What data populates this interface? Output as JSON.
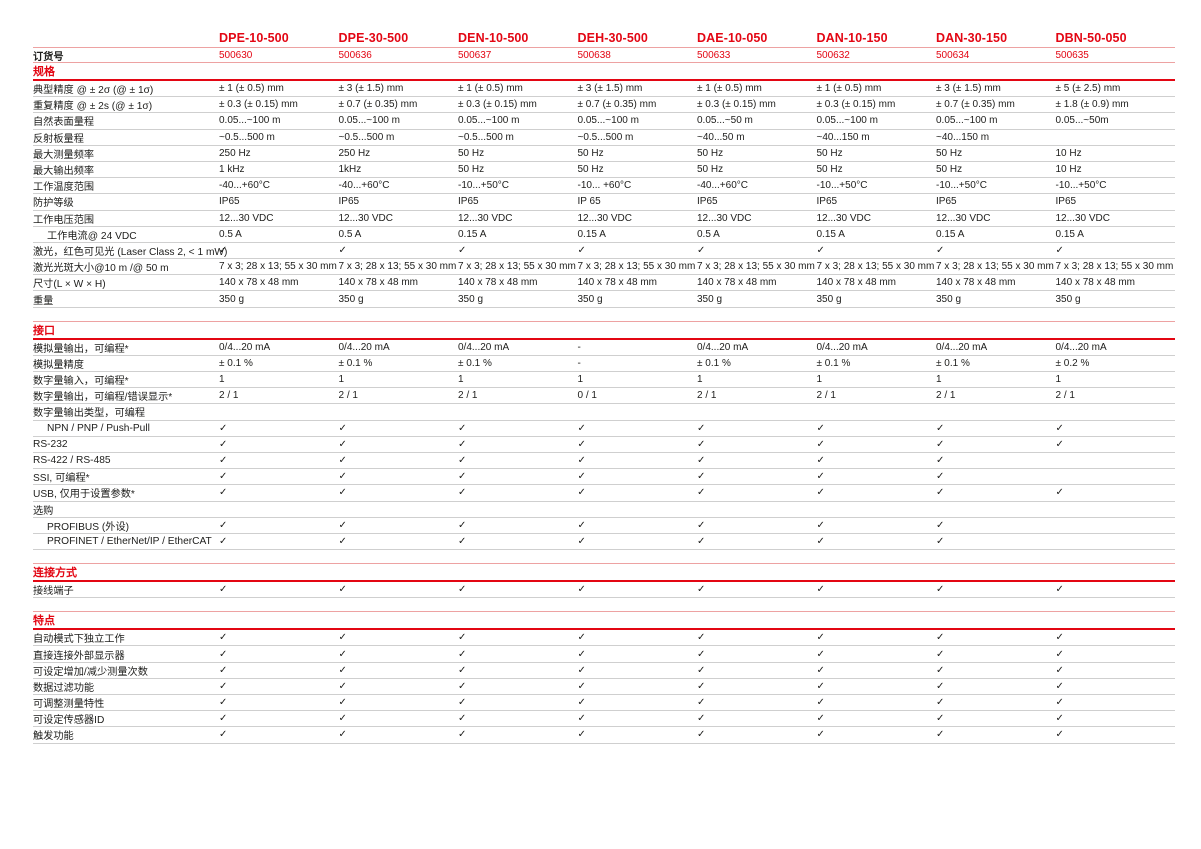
{
  "order_label": "订货号",
  "colors": {
    "accent_red": "#e30613",
    "light_red_line": "#eda2a2",
    "gray_line": "#cfcfcf",
    "text": "#1d1d1b",
    "background": "#ffffff"
  },
  "checkmark_glyph": "✓",
  "columns": [
    {
      "model": "DPE-10-500",
      "order": "500630"
    },
    {
      "model": "DPE-30-500",
      "order": "500636"
    },
    {
      "model": "DEN-10-500",
      "order": "500637"
    },
    {
      "model": "DEH-30-500",
      "order": "500638"
    },
    {
      "model": "DAE-10-050",
      "order": "500633"
    },
    {
      "model": "DAN-10-150",
      "order": "500632"
    },
    {
      "model": "DAN-30-150",
      "order": "500634"
    },
    {
      "model": "DBN-50-050",
      "order": "500635"
    }
  ],
  "sections": [
    {
      "title": "规格",
      "rows": [
        {
          "label": "典型精度 @ ± 2σ (@ ± 1σ)",
          "values": [
            "± 1 (± 0.5) mm",
            "± 3 (± 1.5) mm",
            "± 1 (± 0.5) mm",
            "± 3 (± 1.5) mm",
            "± 1 (± 0.5) mm",
            "± 1 (± 0.5) mm",
            "± 3 (± 1.5) mm",
            "± 5 (± 2.5) mm"
          ]
        },
        {
          "label": "重复精度 @ ± 2s (@ ± 1σ)",
          "values": [
            "± 0.3 (± 0.15) mm",
            "± 0.7 (± 0.35) mm",
            "± 0.3 (± 0.15) mm",
            "± 0.7 (± 0.35) mm",
            "± 0.3 (± 0.15) mm",
            "± 0.3 (± 0.15) mm",
            "± 0.7 (± 0.35) mm",
            "± 1.8 (± 0.9) mm"
          ]
        },
        {
          "label": "自然表面量程",
          "values": [
            "0.05...~100 m",
            "0.05...~100 m",
            "0.05...~100 m",
            "0.05...~100 m",
            "0.05...~50 m",
            "0.05...~100 m",
            "0.05...~100 m",
            "0.05...~50m"
          ]
        },
        {
          "label": "反射板量程",
          "values": [
            "~0.5...500 m",
            "~0.5...500 m",
            "~0.5...500 m",
            "~0.5...500 m",
            "~40...50 m",
            "~40...150 m",
            "~40...150 m",
            ""
          ]
        },
        {
          "label": "最大测量频率",
          "values": [
            "250 Hz",
            "250 Hz",
            "50 Hz",
            "50 Hz",
            "50 Hz",
            "50 Hz",
            "50 Hz",
            "10 Hz"
          ]
        },
        {
          "label": "最大输出频率",
          "values": [
            "1 kHz",
            "1kHz",
            "50 Hz",
            "50 Hz",
            "50 Hz",
            "50 Hz",
            "50 Hz",
            "10 Hz"
          ]
        },
        {
          "label": "工作温度范围",
          "values": [
            "-40...+60°C",
            "-40...+60°C",
            "-10...+50°C",
            "-10... +60°C",
            "-40...+60°C",
            "-10...+50°C",
            "-10...+50°C",
            "-10...+50°C"
          ]
        },
        {
          "label": "防护等级",
          "values": [
            "IP65",
            "IP65",
            "IP65",
            "IP 65",
            "IP65",
            "IP65",
            "IP65",
            "IP65"
          ]
        },
        {
          "label": "工作电压范围",
          "values": [
            "12...30 VDC",
            "12...30 VDC",
            "12...30 VDC",
            "12...30 VDC",
            "12...30 VDC",
            "12...30 VDC",
            "12...30 VDC",
            "12...30 VDC"
          ]
        },
        {
          "label": "工作电流@ 24 VDC",
          "indent": true,
          "values": [
            "0.5 A",
            "0.5 A",
            "0.15 A",
            "0.15 A",
            "0.5 A",
            "0.15 A",
            "0.15 A",
            "0.15 A"
          ]
        },
        {
          "label": "激光，红色可见光 (Laser Class 2, < 1 mW)",
          "values": [
            "✓",
            "✓",
            "✓",
            "✓",
            "✓",
            "✓",
            "✓",
            "✓"
          ]
        },
        {
          "label": "激光光斑大小@10 m /@ 50 m",
          "values": [
            "7 x 3; 28 x 13; 55 x 30 mm",
            "7 x 3; 28 x 13; 55 x 30 mm",
            "7 x 3; 28 x 13; 55 x 30 mm",
            "7 x 3; 28 x 13; 55 x 30 mm",
            "7 x 3; 28 x 13; 55 x 30 mm",
            "7 x 3; 28 x 13; 55 x 30 mm",
            "7 x 3; 28 x 13; 55 x 30 mm",
            "7 x 3; 28 x 13; 55 x 30 mm"
          ]
        },
        {
          "label": "尺寸(L × W × H)",
          "values": [
            "140 x 78 x 48 mm",
            "140 x 78 x 48 mm",
            "140 x 78 x 48 mm",
            "140 x 78 x 48 mm",
            "140 x 78 x 48 mm",
            "140 x 78 x 48 mm",
            "140 x 78 x 48 mm",
            "140 x 78 x 48 mm"
          ]
        },
        {
          "label": "重量",
          "values": [
            "350 g",
            "350 g",
            "350 g",
            "350 g",
            "350 g",
            "350 g",
            "350 g",
            "350 g"
          ]
        }
      ]
    },
    {
      "title": "接口",
      "rows": [
        {
          "label": "模拟量输出，可编程*",
          "values": [
            "0/4...20 mA",
            "0/4...20 mA",
            "0/4...20 mA",
            "-",
            "0/4...20 mA",
            "0/4...20 mA",
            "0/4...20 mA",
            "0/4...20 mA"
          ]
        },
        {
          "label": "模拟量精度",
          "values": [
            "± 0.1 %",
            "± 0.1 %",
            "± 0.1 %",
            "-",
            "± 0.1 %",
            "± 0.1 %",
            "± 0.1 %",
            "± 0.2 %"
          ]
        },
        {
          "label": "数字量输入，可编程*",
          "values": [
            "1",
            "1",
            "1",
            "1",
            "1",
            "1",
            "1",
            "1"
          ]
        },
        {
          "label": "数字量输出，可编程/错误显示*",
          "values": [
            "2 / 1",
            "2 / 1",
            "2 / 1",
            "0 / 1",
            "2 / 1",
            "2 / 1",
            "2 / 1",
            "2 / 1"
          ]
        },
        {
          "label": "数字量输出类型，可编程",
          "group": true
        },
        {
          "label": "NPN / PNP / Push-Pull",
          "indent": true,
          "values": [
            "✓",
            "✓",
            "✓",
            "✓",
            "✓",
            "✓",
            "✓",
            "✓"
          ]
        },
        {
          "label": "RS-232",
          "values": [
            "✓",
            "✓",
            "✓",
            "✓",
            "✓",
            "✓",
            "✓",
            "✓"
          ]
        },
        {
          "label": "RS-422 / RS-485",
          "values": [
            "✓",
            "✓",
            "✓",
            "✓",
            "✓",
            "✓",
            "✓",
            ""
          ]
        },
        {
          "label": "SSI, 可编程*",
          "values": [
            "✓",
            "✓",
            "✓",
            "✓",
            "✓",
            "✓",
            "✓",
            ""
          ]
        },
        {
          "label": "USB, 仅用于设置参数*",
          "values": [
            "✓",
            "✓",
            "✓",
            "✓",
            "✓",
            "✓",
            "✓",
            "✓"
          ]
        },
        {
          "label": "选购",
          "group": true
        },
        {
          "label": "PROFIBUS (外设)",
          "indent": true,
          "values": [
            "✓",
            "✓",
            "✓",
            "✓",
            "✓",
            "✓",
            "✓",
            ""
          ]
        },
        {
          "label": "PROFINET / EtherNet/IP / EtherCAT",
          "indent": true,
          "values": [
            "✓",
            "✓",
            "✓",
            "✓",
            "✓",
            "✓",
            "✓",
            ""
          ]
        }
      ]
    },
    {
      "title": "连接方式",
      "rows": [
        {
          "label": "接线端子",
          "values": [
            "✓",
            "✓",
            "✓",
            "✓",
            "✓",
            "✓",
            "✓",
            "✓"
          ]
        }
      ]
    },
    {
      "title": "特点",
      "rows": [
        {
          "label": "自动模式下独立工作",
          "values": [
            "✓",
            "✓",
            "✓",
            "✓",
            "✓",
            "✓",
            "✓",
            "✓"
          ]
        },
        {
          "label": "直接连接外部显示器",
          "values": [
            "✓",
            "✓",
            "✓",
            "✓",
            "✓",
            "✓",
            "✓",
            "✓"
          ]
        },
        {
          "label": "可设定增加/减少测量次数",
          "values": [
            "✓",
            "✓",
            "✓",
            "✓",
            "✓",
            "✓",
            "✓",
            "✓"
          ]
        },
        {
          "label": "数据过滤功能",
          "values": [
            "✓",
            "✓",
            "✓",
            "✓",
            "✓",
            "✓",
            "✓",
            "✓"
          ]
        },
        {
          "label": "可调整测量特性",
          "values": [
            "✓",
            "✓",
            "✓",
            "✓",
            "✓",
            "✓",
            "✓",
            "✓"
          ]
        },
        {
          "label": "可设定传感器ID",
          "values": [
            "✓",
            "✓",
            "✓",
            "✓",
            "✓",
            "✓",
            "✓",
            "✓"
          ]
        },
        {
          "label": "触发功能",
          "values": [
            "✓",
            "✓",
            "✓",
            "✓",
            "✓",
            "✓",
            "✓",
            "✓"
          ]
        }
      ]
    }
  ]
}
